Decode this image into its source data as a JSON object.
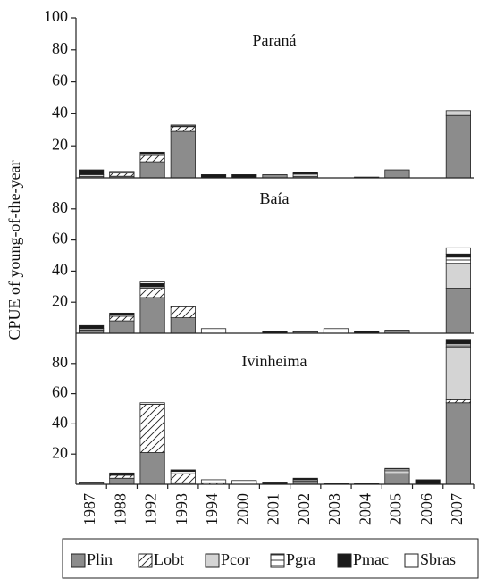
{
  "chart_data": {
    "type": "bar",
    "stacked": true,
    "y_label": "CPUE of young-of-the-year",
    "categories": [
      "1987",
      "1988",
      "1992",
      "1993",
      "1994",
      "2000",
      "2001",
      "2002",
      "2003",
      "2004",
      "2005",
      "2006",
      "2007"
    ],
    "series": [
      {
        "name": "Plin",
        "color": "#8c8c8c"
      },
      {
        "name": "Lobt",
        "color": "#ffffff",
        "pattern": "diagonal"
      },
      {
        "name": "Pcor",
        "color": "#d4d4d4"
      },
      {
        "name": "Pgra",
        "color": "#ffffff",
        "pattern": "hline"
      },
      {
        "name": "Pmac",
        "color": "#1a1a1a"
      },
      {
        "name": "Sbras",
        "color": "#ffffff"
      }
    ],
    "legend": "bottom",
    "panels": [
      {
        "title": "Paraná",
        "ylim": [
          0,
          100
        ],
        "yticks": [
          20,
          40,
          60,
          80,
          100
        ],
        "values": [
          [
            1,
            1,
            10,
            29,
            0,
            0,
            2,
            1,
            0,
            0,
            5,
            0,
            39
          ],
          [
            0,
            2,
            4,
            3,
            0,
            0,
            0,
            0,
            0,
            0,
            0,
            0,
            0
          ],
          [
            0,
            0,
            0,
            0,
            0,
            0,
            0,
            0,
            0,
            0,
            0,
            0,
            3
          ],
          [
            1,
            1,
            1,
            1,
            0,
            0,
            0,
            1.5,
            0,
            0,
            0,
            0,
            0
          ],
          [
            3,
            0,
            1,
            0,
            2,
            2,
            0,
            1,
            0,
            0.5,
            0,
            0,
            0
          ],
          [
            0,
            0,
            0,
            0,
            0,
            0,
            0,
            0,
            0,
            0,
            0,
            0,
            0
          ]
        ]
      },
      {
        "title": "Baía",
        "ylim": [
          0,
          100
        ],
        "yticks": [
          20,
          40,
          60,
          80
        ],
        "values": [
          [
            2,
            8,
            23,
            10,
            0,
            0,
            0,
            1,
            0,
            0,
            1.5,
            0,
            29
          ],
          [
            0,
            3,
            6,
            7,
            0,
            0,
            0,
            0,
            0,
            0,
            0,
            0,
            0
          ],
          [
            1,
            0,
            0,
            0,
            0,
            0,
            0,
            0,
            0,
            0,
            0,
            0,
            16
          ],
          [
            0,
            1,
            1,
            0,
            0,
            0,
            0,
            0,
            0,
            0,
            0,
            0,
            4
          ],
          [
            2,
            1,
            2,
            0,
            0,
            0,
            1,
            0.5,
            0,
            1.5,
            0.5,
            0,
            2
          ],
          [
            0,
            0,
            1,
            0,
            3,
            0,
            0,
            0,
            3,
            0,
            0,
            0,
            4
          ]
        ]
      },
      {
        "title": "Ivinheima",
        "ylim": [
          0,
          100
        ],
        "yticks": [
          20,
          40,
          60,
          80
        ],
        "values": [
          [
            1.5,
            4,
            21,
            1,
            0,
            0,
            0,
            2,
            0,
            0,
            7,
            0,
            54
          ],
          [
            0,
            2,
            32,
            6,
            1,
            0,
            0,
            0,
            0,
            0,
            0,
            0,
            2
          ],
          [
            0,
            0,
            0,
            0,
            0,
            0,
            0,
            1,
            0,
            0,
            2,
            0,
            35
          ],
          [
            0,
            0,
            1,
            1.5,
            0,
            0,
            0,
            0,
            0,
            0,
            1.5,
            0,
            2
          ],
          [
            0,
            1.5,
            0,
            1,
            0,
            0,
            1.5,
            1,
            0.5,
            0.5,
            0,
            3,
            3
          ],
          [
            0,
            0,
            0,
            0,
            2,
            2.5,
            0,
            0,
            0,
            0,
            0,
            0,
            0
          ]
        ]
      }
    ]
  }
}
